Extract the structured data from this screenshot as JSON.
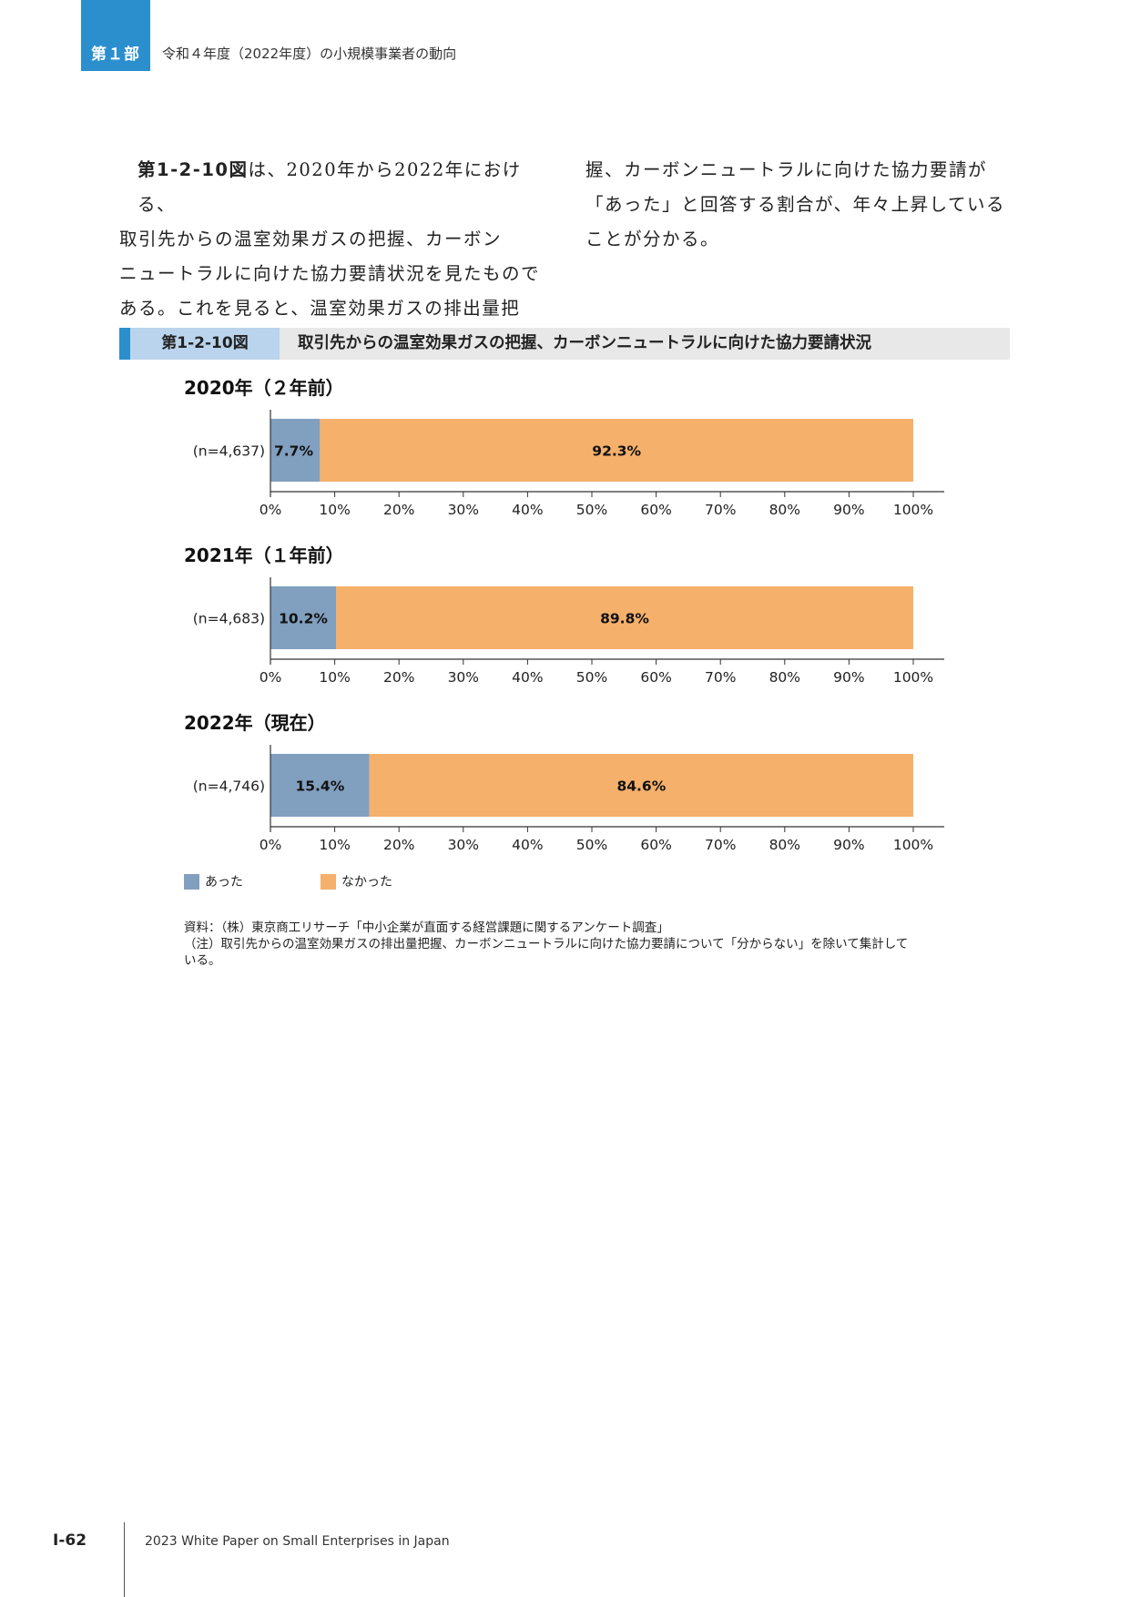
{
  "header": {
    "part_label": "第１部",
    "section_title": "令和４年度（2022年度）の小規模事業者の動向"
  },
  "body": {
    "col1_lines": [
      {
        "ref": "第1-2-10図",
        "text": "は、2020年から2022年における、"
      },
      {
        "text": "取引先からの温室効果ガスの把握、カーボン"
      },
      {
        "text": "ニュートラルに向けた協力要請状況を見たもので"
      },
      {
        "text": "ある。これを見ると、温室効果ガスの排出量把"
      }
    ],
    "col2_lines": [
      {
        "text": "握、カーボンニュートラルに向けた協力要請が"
      },
      {
        "text": "「あった」と回答する割合が、年々上昇している"
      },
      {
        "text": "ことが分かる。"
      }
    ]
  },
  "figure": {
    "number": "第1-2-10図",
    "title": "取引先からの温室効果ガスの把握、カーボンニュートラルに向けた協力要請状況"
  },
  "chart_data": {
    "type": "bar",
    "orientation": "horizontal-stacked-100",
    "x_ticks": [
      "0%",
      "10%",
      "20%",
      "30%",
      "40%",
      "50%",
      "60%",
      "70%",
      "80%",
      "90%",
      "100%"
    ],
    "xlim": [
      0,
      100
    ],
    "legend_placement": "bottom-left",
    "legend": [
      {
        "name": "あった",
        "color": "#819fbf"
      },
      {
        "name": "なかった",
        "color": "#f5b06b"
      }
    ],
    "panels": [
      {
        "title": "2020年（２年前）",
        "category": "(n=4,637)",
        "values": [
          7.7,
          92.3
        ],
        "labels": [
          "7.7%",
          "92.3%"
        ]
      },
      {
        "title": "2021年（１年前）",
        "category": "(n=4,683)",
        "values": [
          10.2,
          89.8
        ],
        "labels": [
          "10.2%",
          "89.8%"
        ]
      },
      {
        "title": "2022年（現在）",
        "category": "(n=4,746)",
        "values": [
          15.4,
          84.6
        ],
        "labels": [
          "15.4%",
          "84.6%"
        ]
      }
    ]
  },
  "notes": {
    "source": "資料：（株）東京商工リサーチ「中小企業が直面する経営課題に関するアンケート調査」",
    "note": "（注）取引先からの温室効果ガスの排出量把握、カーボンニュートラルに向けた協力要請について「分からない」を除いて集計して\nいる。"
  },
  "footer": {
    "page_number": "Ⅰ-62",
    "publication": "2023 White Paper on Small Enterprises in Japan"
  }
}
